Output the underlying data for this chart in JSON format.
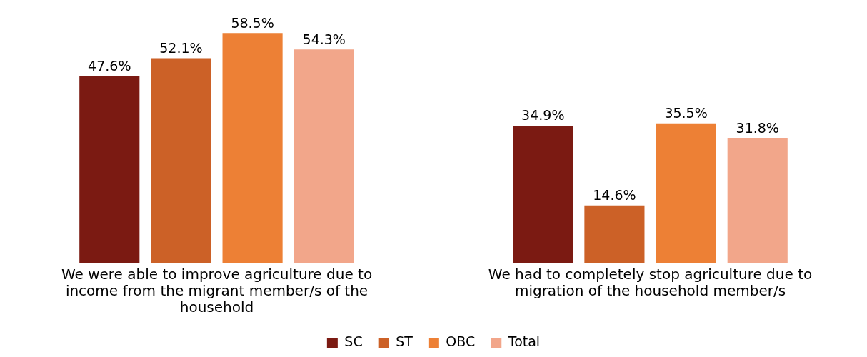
{
  "chart_data": {
    "type": "bar",
    "categories": [
      "We were able to improve agriculture due to income from the migrant member/s of the household",
      "We had to completely stop agriculture due to migration of the household member/s"
    ],
    "series": [
      {
        "name": "SC",
        "color": "#7b1a12",
        "values": [
          47.6,
          34.9
        ],
        "value_labels": [
          "47.6%",
          "34.9%"
        ]
      },
      {
        "name": "ST",
        "color": "#cc6127",
        "values": [
          52.1,
          14.6
        ],
        "value_labels": [
          "52.1%",
          "14.6%"
        ]
      },
      {
        "name": "OBC",
        "color": "#ed8035",
        "values": [
          58.5,
          35.5
        ],
        "value_labels": [
          "58.5%",
          "35.5%"
        ]
      },
      {
        "name": "Total",
        "color": "#f2a68a",
        "values": [
          54.3,
          31.8
        ],
        "value_labels": [
          "54.3%",
          "31.8%"
        ]
      }
    ],
    "grid": false,
    "legend": "bottom",
    "tick_labels": "x"
  }
}
